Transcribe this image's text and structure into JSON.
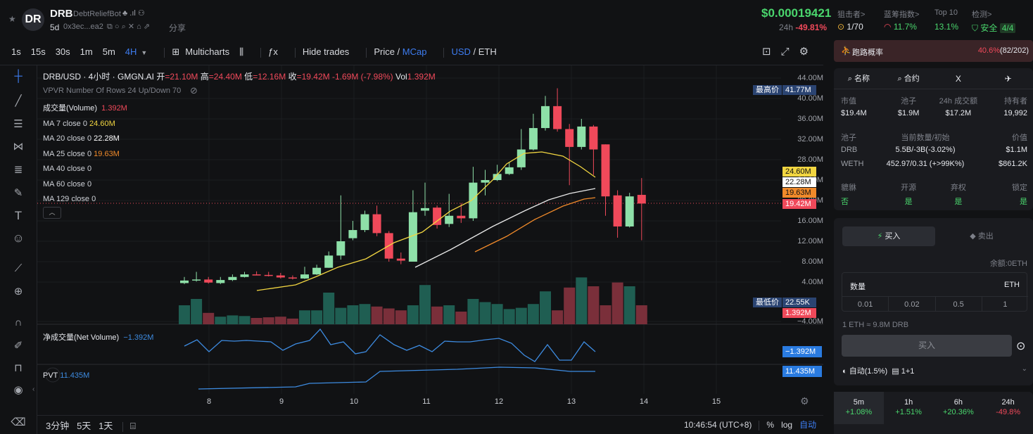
{
  "header": {
    "avatar": "DR",
    "name": "DRB",
    "bot": "DebtReliefBot",
    "age": "5d",
    "address": "0x3ec...ea2",
    "share": "分享",
    "price": "$0.00019421",
    "change_label": "24h",
    "change": "-49.81%"
  },
  "stats": [
    {
      "label": "狙击者>",
      "value": "1/70"
    },
    {
      "label": "蓝筹指数>",
      "value": "11.7%"
    },
    {
      "label": "Top 10",
      "value": "13.1%"
    },
    {
      "label": "检测>",
      "value": "安全",
      "extra": "4/4"
    }
  ],
  "toolbar": {
    "intervals": [
      "1s",
      "15s",
      "30s",
      "1m",
      "5m",
      "4H"
    ],
    "multicharts": "Multicharts",
    "hide_trades": "Hide trades",
    "price": "Price",
    "mcap": "MCap",
    "usd": "USD",
    "eth": "ETH"
  },
  "legend": {
    "title": "DRB/USD · 4小时 · GMGN.AI",
    "open_l": "开",
    "open": "=21.10M",
    "high_l": "高",
    "high": "=24.40M",
    "low_l": "低",
    "low": "=12.16M",
    "close_l": "收",
    "close": "=19.42M",
    "chg": "-1.69M (-7.98%)",
    "vol_l": "Vol",
    "vol": "1.392M",
    "vpvr": "VPVR Number Of Rows 24 Up/Down 70",
    "volume": "成交量(Volume)",
    "volume_v": "1.392M",
    "ma": [
      {
        "l": "MA 7 close 0",
        "v": "24.60M",
        "c": "#f2d641"
      },
      {
        "l": "MA 20 close 0",
        "v": "22.28M",
        "c": "#ffffff"
      },
      {
        "l": "MA 25 close 0",
        "v": "19.63M",
        "c": "#f08a2a"
      },
      {
        "l": "MA 40 close 0",
        "v": ""
      },
      {
        "l": "MA 60 close 0",
        "v": ""
      },
      {
        "l": "MA 129 close 0",
        "v": ""
      }
    ],
    "netvol": "净成交量(Net Volume)",
    "netvol_v": "−1.392M",
    "pvt": "PVT",
    "pvt_v": "11.435M"
  },
  "price_axis": {
    "ticks": [
      "44.00M",
      "40.00M",
      "36.00M",
      "32.00M",
      "28.00M",
      "24.00M",
      "20.00M",
      "16.00M",
      "12.00M",
      "8.00M",
      "4.00M",
      "−4.00M"
    ],
    "high_label": "最高价",
    "high": "41.77M",
    "low_label": "最低价",
    "low": "22.55K",
    "vol_pill": "1.392M",
    "ma7": "24.60M",
    "ma20": "22.28M",
    "ma25": "19.63M",
    "last": "19.42M",
    "nv": "−1.392M",
    "pvt": "11.435M"
  },
  "time_axis": [
    "8",
    "9",
    "10",
    "11",
    "12",
    "13",
    "14",
    "15"
  ],
  "bottom": {
    "r1": "3分钟",
    "r2": "5天",
    "r3": "1天",
    "time": "10:46:54 (UTC+8)",
    "pct": "%",
    "log": "log",
    "auto": "自动"
  },
  "rug": {
    "label": "跑路概率",
    "value": "40.6%",
    "count": "(82/202)"
  },
  "tabs": [
    "名称",
    "合约",
    "X",
    "✈"
  ],
  "market": {
    "h": [
      "市值",
      "池子",
      "24h 成交额",
      "持有者"
    ],
    "v": [
      "$19.4M",
      "$1.9M",
      "$17.2M",
      "19,992"
    ]
  },
  "pool": {
    "h": [
      "池子",
      "当前数量/初始",
      "价值"
    ],
    "rows": [
      [
        "DRB",
        "5.5B/-3B(-3.02%)",
        "$1.1M"
      ],
      [
        "WETH",
        "452.97/0.31 (+>99K%)",
        "$861.2K"
      ]
    ]
  },
  "flags": {
    "h": [
      "貔貅",
      "开源",
      "弃权",
      "锁定"
    ],
    "v": [
      "否",
      "是",
      "是",
      "是"
    ]
  },
  "trade": {
    "buy": "买入",
    "sell": "卖出",
    "balance": "余额:0ETH",
    "qty": "数量",
    "unit": "ETH",
    "amounts": [
      "0.01",
      "0.02",
      "0.5",
      "1"
    ],
    "rate": "1 ETH ≈ 9.8M DRB",
    "submit": "买入",
    "auto": "自动(1.5%)",
    "ratio": "1+1"
  },
  "perf": [
    {
      "p": "5m",
      "v": "+1.08%"
    },
    {
      "p": "1h",
      "v": "+1.51%"
    },
    {
      "p": "6h",
      "v": "+20.36%"
    },
    {
      "p": "24h",
      "v": "-49.8%"
    }
  ],
  "chart_data": {
    "type": "candlestick",
    "x": [
      "7.9",
      "8.0",
      "8.1",
      "8.2",
      "8.3",
      "8.4",
      "8.5",
      "8.6",
      "8.7",
      "8.8",
      "8.9",
      "9.0",
      "9.1",
      "9.2",
      "9.3",
      "9.4",
      "9.5",
      "9.6",
      "9.7",
      "9.8",
      "9.9",
      "10.0",
      "10.1",
      "10.2",
      "10.3",
      "10.4",
      "10.5",
      "10.6",
      "10.7",
      "10.8",
      "10.9",
      "11.0",
      "11.1",
      "11.2",
      "11.3",
      "11.4",
      "11.5",
      "11.6",
      "11.7",
      "11.8",
      "11.9",
      "12.0",
      "12.1",
      "12.2",
      "12.3",
      "12.4",
      "12.5",
      "12.6",
      "12.7",
      "12.8",
      "12.9",
      "13.0",
      "13.1",
      "13.2",
      "13.3"
    ],
    "ylim": [
      -4,
      46
    ],
    "ylabel": "",
    "xlabel": ""
  }
}
